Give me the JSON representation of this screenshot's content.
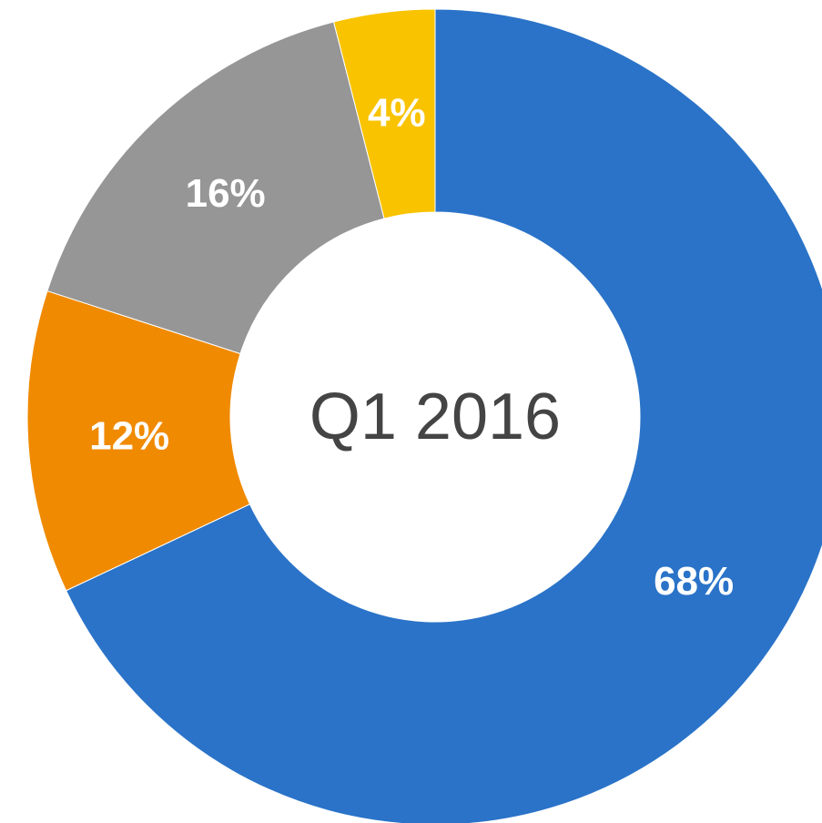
{
  "chart_data": {
    "type": "donut",
    "title": "Q1 2016",
    "values": [
      68,
      12,
      16,
      4
    ],
    "value_labels": [
      "68%",
      "12%",
      "16%",
      "4%"
    ],
    "colors": [
      "#2a73c8",
      "#f08a00",
      "#969696",
      "#f9c300"
    ]
  }
}
